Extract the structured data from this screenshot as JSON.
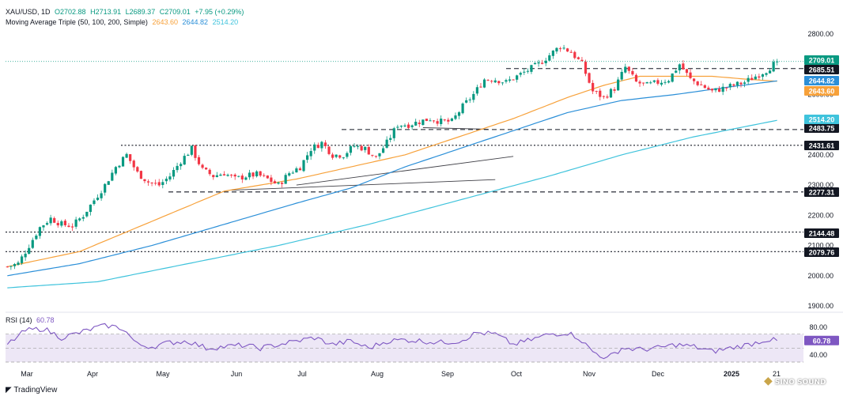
{
  "header": {
    "symbol": "XAU/USD, 1D",
    "open": "O2702.88",
    "high": "H2713.91",
    "low": "L2689.37",
    "close": "C2709.01",
    "change": "+7.95 (+0.29%)",
    "ma_label": "Moving Average Triple (50, 100, 200, Simple)",
    "ma50": "2643.60",
    "ma100": "2644.82",
    "ma200": "2514.20",
    "rsi_label": "RSI (14)",
    "rsi_value": "60.78"
  },
  "branding": {
    "tradingview": "TradingView",
    "watermark": "SINO SOUND"
  },
  "colors": {
    "up": "#089981",
    "down": "#f23645",
    "ma50": "#f7a13a",
    "ma100": "#2b8fd8",
    "ma200": "#3fc3dc",
    "rsi": "#7e57c2",
    "rsi_band": "#ede7f6",
    "text": "#131722",
    "axis_text": "#131722",
    "grid_dotted": "#131722"
  },
  "chart_data": {
    "type": "candlestick",
    "x_labels": [
      "Mar",
      "Apr",
      "May",
      "Jun",
      "Jul",
      "Aug",
      "Sep",
      "Oct",
      "Nov",
      "Dec",
      "2025",
      "21"
    ],
    "y_ticks": [
      1900,
      2000,
      2100,
      2200,
      2300,
      2400,
      2500,
      2600,
      2700,
      2800
    ],
    "ylim": [
      1870,
      2835
    ],
    "levels": [
      {
        "value": 2685.51,
        "label": "2685.51",
        "style": "dashed"
      },
      {
        "value": 2483.75,
        "label": "2483.75",
        "style": "dashed"
      },
      {
        "value": 2431.61,
        "label": "2431.61",
        "style": "dotted"
      },
      {
        "value": 2277.31,
        "label": "2277.31",
        "style": "dashed"
      },
      {
        "value": 2144.48,
        "label": "2144.48",
        "style": "dotted"
      },
      {
        "value": 2079.76,
        "label": "2079.76",
        "style": "dotted"
      }
    ],
    "price_label": {
      "value": 2709.01,
      "label": "2709.01"
    },
    "ma_labels": [
      {
        "value": 2644.82,
        "label": "2644.82",
        "series": "ma100"
      },
      {
        "value": 2643.6,
        "label": "2643.60",
        "series": "ma50"
      },
      {
        "value": 2514.2,
        "label": "2514.20",
        "series": "ma200"
      }
    ],
    "close_anchors": [
      [
        0,
        2030
      ],
      [
        3,
        2040
      ],
      [
        6,
        2100
      ],
      [
        9,
        2160
      ],
      [
        12,
        2190
      ],
      [
        15,
        2170
      ],
      [
        18,
        2165
      ],
      [
        21,
        2200
      ],
      [
        24,
        2250
      ],
      [
        27,
        2300
      ],
      [
        30,
        2360
      ],
      [
        33,
        2400
      ],
      [
        36,
        2340
      ],
      [
        39,
        2310
      ],
      [
        42,
        2300
      ],
      [
        45,
        2330
      ],
      [
        48,
        2380
      ],
      [
        51,
        2420
      ],
      [
        54,
        2350
      ],
      [
        57,
        2330
      ],
      [
        60,
        2340
      ],
      [
        63,
        2320
      ],
      [
        66,
        2330
      ],
      [
        69,
        2335
      ],
      [
        72,
        2320
      ],
      [
        75,
        2300
      ],
      [
        78,
        2340
      ],
      [
        81,
        2360
      ],
      [
        84,
        2420
      ],
      [
        87,
        2440
      ],
      [
        90,
        2400
      ],
      [
        93,
        2400
      ],
      [
        96,
        2430
      ],
      [
        99,
        2420
      ],
      [
        102,
        2390
      ],
      [
        105,
        2440
      ],
      [
        108,
        2500
      ],
      [
        111,
        2500
      ],
      [
        114,
        2510
      ],
      [
        117,
        2520
      ],
      [
        120,
        2510
      ],
      [
        123,
        2510
      ],
      [
        126,
        2560
      ],
      [
        129,
        2600
      ],
      [
        132,
        2650
      ],
      [
        135,
        2650
      ],
      [
        138,
        2640
      ],
      [
        141,
        2660
      ],
      [
        144,
        2680
      ],
      [
        147,
        2700
      ],
      [
        150,
        2730
      ],
      [
        153,
        2760
      ],
      [
        156,
        2740
      ],
      [
        159,
        2700
      ],
      [
        162,
        2610
      ],
      [
        165,
        2590
      ],
      [
        168,
        2620
      ],
      [
        171,
        2690
      ],
      [
        174,
        2640
      ],
      [
        177,
        2630
      ],
      [
        180,
        2640
      ],
      [
        183,
        2650
      ],
      [
        186,
        2700
      ],
      [
        189,
        2650
      ],
      [
        192,
        2630
      ],
      [
        195,
        2610
      ],
      [
        198,
        2620
      ],
      [
        201,
        2630
      ],
      [
        204,
        2640
      ],
      [
        207,
        2660
      ],
      [
        210,
        2680
      ],
      [
        213,
        2709
      ]
    ],
    "series": [
      {
        "name": "MA 50",
        "key": "ma50",
        "anchors": [
          [
            0,
            2030
          ],
          [
            20,
            2080
          ],
          [
            40,
            2180
          ],
          [
            60,
            2280
          ],
          [
            80,
            2320
          ],
          [
            95,
            2360
          ],
          [
            110,
            2400
          ],
          [
            125,
            2460
          ],
          [
            140,
            2520
          ],
          [
            155,
            2590
          ],
          [
            165,
            2630
          ],
          [
            175,
            2660
          ],
          [
            185,
            2660
          ],
          [
            195,
            2660
          ],
          [
            205,
            2650
          ],
          [
            213,
            2643.6
          ]
        ]
      },
      {
        "name": "MA 100",
        "key": "ma100",
        "anchors": [
          [
            0,
            2000
          ],
          [
            20,
            2040
          ],
          [
            40,
            2100
          ],
          [
            60,
            2170
          ],
          [
            80,
            2240
          ],
          [
            95,
            2290
          ],
          [
            110,
            2360
          ],
          [
            125,
            2420
          ],
          [
            140,
            2480
          ],
          [
            155,
            2540
          ],
          [
            170,
            2580
          ],
          [
            185,
            2600
          ],
          [
            200,
            2625
          ],
          [
            213,
            2644.82
          ]
        ]
      },
      {
        "name": "MA 200",
        "key": "ma200",
        "anchors": [
          [
            0,
            1960
          ],
          [
            25,
            1980
          ],
          [
            50,
            2040
          ],
          [
            75,
            2100
          ],
          [
            100,
            2170
          ],
          [
            125,
            2250
          ],
          [
            150,
            2330
          ],
          [
            170,
            2400
          ],
          [
            190,
            2460
          ],
          [
            213,
            2514.2
          ]
        ]
      }
    ],
    "rsi": {
      "label": "RSI (14)",
      "value": 60.78,
      "ylim": [
        30,
        90
      ],
      "y_ticks": [
        40,
        80
      ],
      "band": [
        30,
        70
      ],
      "anchors": [
        [
          0,
          55
        ],
        [
          5,
          75
        ],
        [
          10,
          78
        ],
        [
          15,
          65
        ],
        [
          20,
          72
        ],
        [
          25,
          80
        ],
        [
          28,
          82
        ],
        [
          32,
          78
        ],
        [
          36,
          55
        ],
        [
          40,
          52
        ],
        [
          45,
          58
        ],
        [
          50,
          60
        ],
        [
          55,
          50
        ],
        [
          60,
          52
        ],
        [
          65,
          54
        ],
        [
          70,
          50
        ],
        [
          75,
          55
        ],
        [
          80,
          60
        ],
        [
          85,
          65
        ],
        [
          90,
          55
        ],
        [
          95,
          60
        ],
        [
          100,
          50
        ],
        [
          105,
          60
        ],
        [
          110,
          62
        ],
        [
          115,
          60
        ],
        [
          120,
          58
        ],
        [
          125,
          60
        ],
        [
          130,
          72
        ],
        [
          135,
          70
        ],
        [
          140,
          55
        ],
        [
          145,
          62
        ],
        [
          150,
          70
        ],
        [
          155,
          72
        ],
        [
          158,
          65
        ],
        [
          162,
          45
        ],
        [
          166,
          35
        ],
        [
          170,
          50
        ],
        [
          175,
          48
        ],
        [
          180,
          50
        ],
        [
          185,
          55
        ],
        [
          190,
          52
        ],
        [
          195,
          45
        ],
        [
          200,
          50
        ],
        [
          205,
          55
        ],
        [
          210,
          62
        ],
        [
          213,
          60.78
        ]
      ]
    }
  }
}
